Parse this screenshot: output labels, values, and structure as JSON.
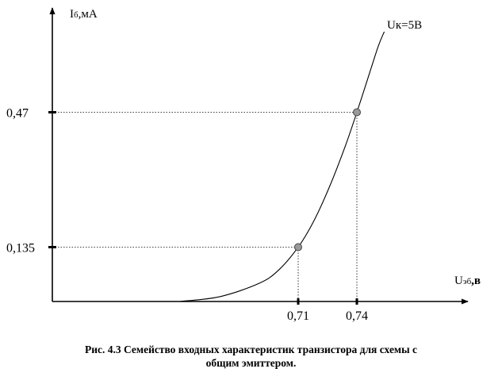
{
  "chart_data": {
    "type": "line",
    "y_axis_label_main": "I",
    "y_axis_label_sub": "б",
    "y_axis_label_unit": ",мА",
    "x_axis_label_main": "U",
    "x_axis_label_sub": "эб",
    "x_axis_label_unit": ",в",
    "series_label": "Uк=5В",
    "x_ticks": [
      "0,71",
      "0,74"
    ],
    "y_ticks": [
      "0,47",
      "0,135"
    ],
    "points": [
      {
        "x": 0.71,
        "y": 0.135
      },
      {
        "x": 0.74,
        "y": 0.47
      }
    ],
    "curve": [
      {
        "x": 0.6495,
        "y": 0.0
      },
      {
        "x": 0.67,
        "y": 0.012
      },
      {
        "x": 0.69,
        "y": 0.045
      },
      {
        "x": 0.7,
        "y": 0.078
      },
      {
        "x": 0.71,
        "y": 0.135
      },
      {
        "x": 0.718,
        "y": 0.2
      },
      {
        "x": 0.726,
        "y": 0.285
      },
      {
        "x": 0.734,
        "y": 0.385
      },
      {
        "x": 0.74,
        "y": 0.47
      },
      {
        "x": 0.746,
        "y": 0.56
      },
      {
        "x": 0.751,
        "y": 0.635
      },
      {
        "x": 0.754,
        "y": 0.67
      }
    ],
    "grid": false,
    "colors": {
      "line": "#000000",
      "marker_fill": "#999999",
      "guide": "#000000"
    }
  },
  "caption": {
    "line1": "Рис. 4.3 Семейство входных характеристик транзистора для схемы с",
    "line2": "общим эмиттером."
  }
}
